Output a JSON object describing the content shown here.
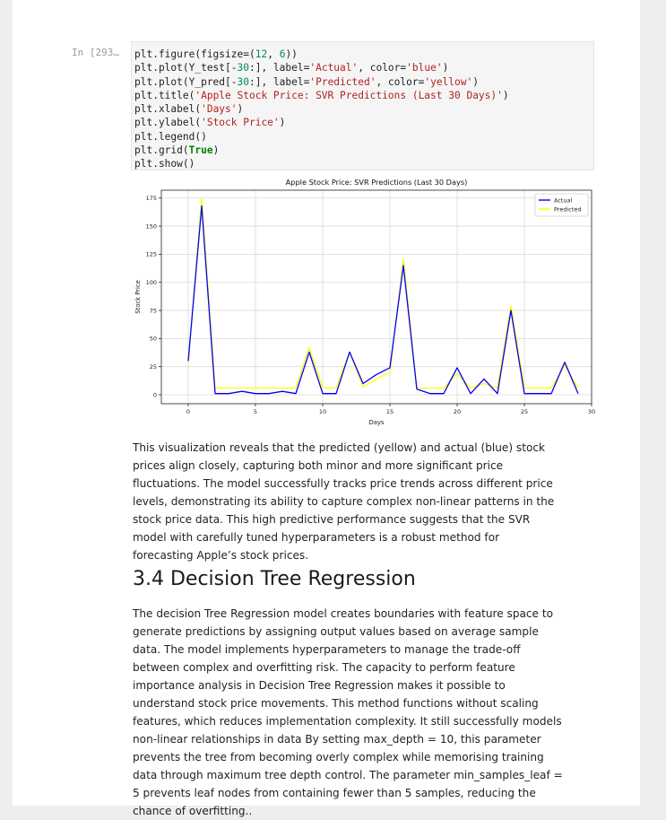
{
  "cell": {
    "prompt": "In [293…",
    "code_lines": [
      [
        {
          "t": "plt.figure(figsize=("
        },
        {
          "t": "12",
          "c": "n"
        },
        {
          "t": ", "
        },
        {
          "t": "6",
          "c": "n"
        },
        {
          "t": "))"
        }
      ],
      [
        {
          "t": "plt.plot(Y_test[-"
        },
        {
          "t": "30",
          "c": "n"
        },
        {
          "t": ":], label="
        },
        {
          "t": "'Actual'",
          "c": "s"
        },
        {
          "t": ", color="
        },
        {
          "t": "'blue'",
          "c": "s"
        },
        {
          "t": ")"
        }
      ],
      [
        {
          "t": "plt.plot(Y_pred[-"
        },
        {
          "t": "30",
          "c": "n"
        },
        {
          "t": ":], label="
        },
        {
          "t": "'Predicted'",
          "c": "s"
        },
        {
          "t": ", color="
        },
        {
          "t": "'yellow'",
          "c": "s"
        },
        {
          "t": ")"
        }
      ],
      [
        {
          "t": "plt.title("
        },
        {
          "t": "'Apple Stock Price: SVR Predictions (Last 30 Days)'",
          "c": "s"
        },
        {
          "t": ")"
        }
      ],
      [
        {
          "t": "plt.xlabel("
        },
        {
          "t": "'Days'",
          "c": "s"
        },
        {
          "t": ")"
        }
      ],
      [
        {
          "t": "plt.ylabel("
        },
        {
          "t": "'Stock Price'",
          "c": "s"
        },
        {
          "t": ")"
        }
      ],
      [
        {
          "t": "plt.legend()"
        }
      ],
      [
        {
          "t": "plt.grid("
        },
        {
          "t": "True",
          "c": "k"
        },
        {
          "t": ")"
        }
      ],
      [
        {
          "t": "plt.show()"
        }
      ]
    ]
  },
  "chart_data": {
    "type": "line",
    "title": "Apple Stock Price: SVR Predictions (Last 30 Days)",
    "xlabel": "Days",
    "ylabel": "Stock Price",
    "xlim": [
      -2,
      30
    ],
    "ylim": [
      -8,
      182
    ],
    "xticks": [
      0,
      5,
      10,
      15,
      20,
      25,
      30
    ],
    "yticks": [
      0,
      25,
      50,
      75,
      100,
      125,
      150,
      175
    ],
    "grid": true,
    "legend_position": "top-right",
    "series": [
      {
        "name": "Actual",
        "color": "#0000ff",
        "values": [
          30,
          168,
          1,
          1,
          3,
          1,
          1,
          3,
          1,
          38,
          1,
          1,
          38,
          10,
          18,
          24,
          115,
          5,
          1,
          1,
          24,
          1,
          14,
          1,
          75,
          1,
          1,
          1,
          29,
          1
        ]
      },
      {
        "name": "Predicted",
        "color": "#ffff00",
        "values": [
          28,
          175,
          6,
          6,
          6,
          6,
          6,
          6,
          6,
          42,
          6,
          6,
          38,
          7,
          14,
          20,
          121,
          6,
          6,
          6,
          19,
          6,
          10,
          6,
          79,
          6,
          6,
          6,
          26,
          6
        ]
      }
    ]
  },
  "paragraph1": "This visualization reveals that the predicted (yellow) and actual (blue) stock prices align closely, capturing both minor and more significant price fluctuations. The model successfully tracks price trends across different price levels, demonstrating its ability to capture complex non-linear patterns in the stock price data. This high predictive performance suggests that the SVR model with carefully tuned hyperparameters is a robust method for forecasting Apple’s stock prices.",
  "heading": "3.4 Decision Tree Regression",
  "paragraph2": "The decision Tree Regression model creates boundaries with feature space to generate predictions by assigning output values based on average sample data. The model implements hyperparameters to manage the trade-off between complex and overfitting risk. The capacity to perform feature importance analysis in Decision Tree Regression makes it possible to understand stock price movements. This method functions without scaling features, which reduces implementation complexity. It still successfully models non-linear relationships in data By setting max_depth = 10, this parameter prevents the tree from becoming overly complex while memorising training data through maximum tree depth control. The parameter min_samples_leaf = 5 prevents leaf nodes from containing fewer than 5 samples, reducing the chance of overfitting.."
}
